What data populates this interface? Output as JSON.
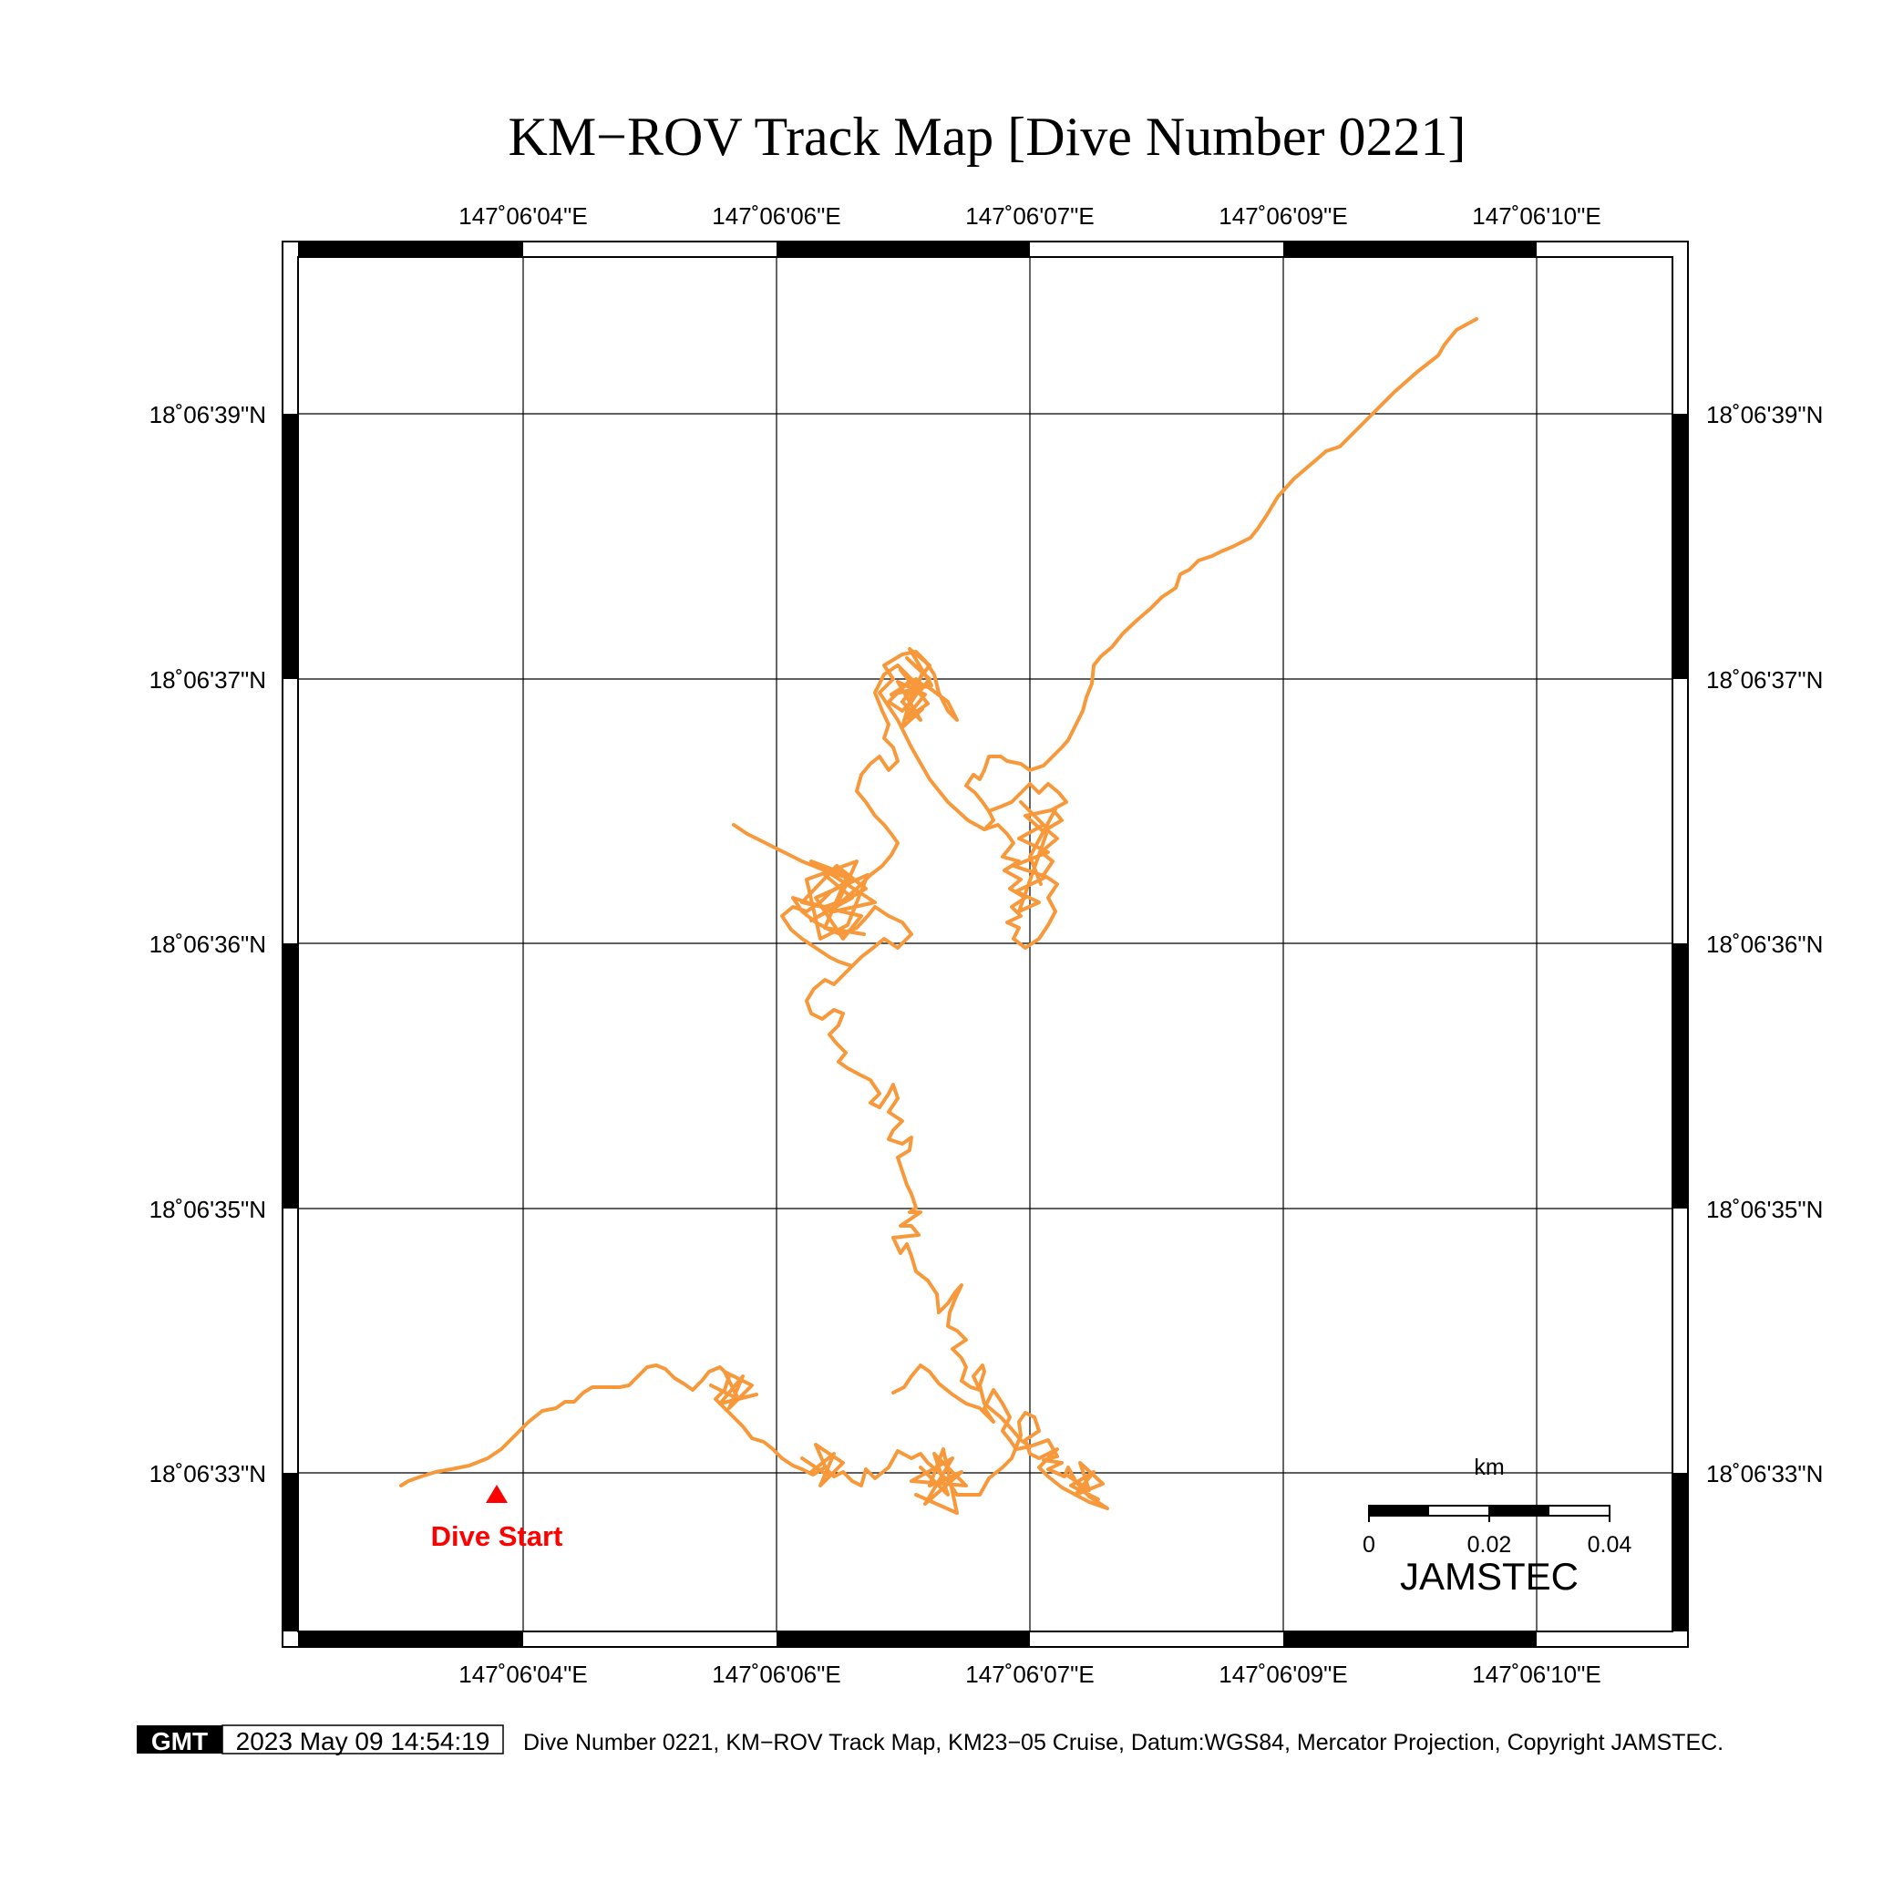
{
  "title": "KM−ROV Track Map [Dive Number 0221]",
  "axes": {
    "lon_labels": [
      "147˚06'04\"E",
      "147˚06'06\"E",
      "147˚06'07\"E",
      "147˚06'09\"E",
      "147˚06'10\"E"
    ],
    "lat_labels": [
      "18˚06'39\"N",
      "18˚06'37\"N",
      "18˚06'36\"N",
      "18˚06'35\"N",
      "18˚06'33\"N"
    ]
  },
  "track": {
    "color": "#f7993b",
    "marker_color": "#ff0000",
    "start_label": "Dive Start"
  },
  "scale_bar": {
    "unit": "km",
    "labels": [
      "0",
      "0.02",
      "0.04"
    ],
    "brand": "JAMSTEC"
  },
  "footer": {
    "gmt_logo": "GMT",
    "timestamp": "2023 May 09 14:54:19",
    "caption": "Dive Number 0221, KM−ROV Track Map, KM23−05 Cruise, Datum:WGS84, Mercator Projection, Copyright JAMSTEC."
  }
}
